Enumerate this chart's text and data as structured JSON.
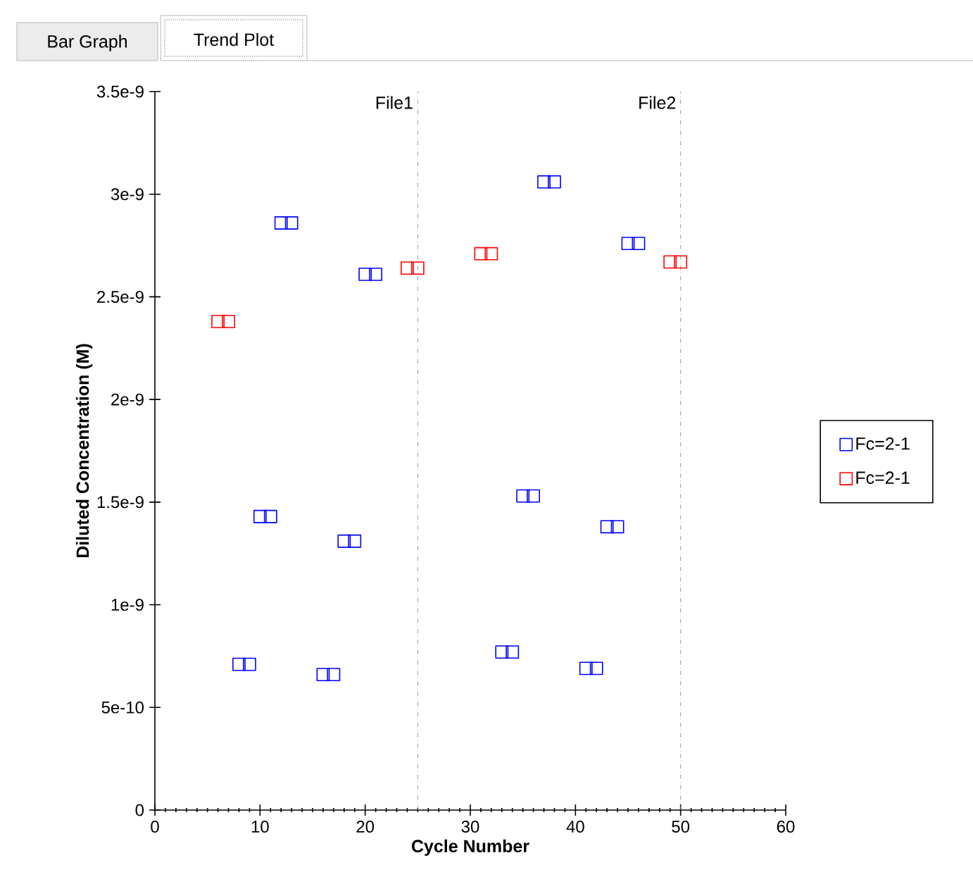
{
  "chart_data": {
    "type": "scatter",
    "xlabel": "Cycle Number",
    "ylabel": "Diluted Concentration (M)",
    "xlim": [
      0,
      60
    ],
    "xticks": [
      0,
      10,
      20,
      30,
      40,
      50,
      60
    ],
    "ylim": [
      0,
      3.5e-09
    ],
    "yticks": [
      0,
      {
        "value": 5e-10,
        "label": "5e-10"
      },
      {
        "value": 1e-09,
        "label": "1e-9"
      },
      {
        "value": 1.5e-09,
        "label": "1.5e-9"
      },
      {
        "value": 2e-09,
        "label": "2e-9"
      },
      {
        "value": 2.5e-09,
        "label": "2.5e-9"
      },
      {
        "value": 3e-09,
        "label": "3e-9"
      },
      {
        "value": 3.5e-09,
        "label": "3.5e-9"
      }
    ],
    "series": [
      {
        "name": "Fc=2-1",
        "color": "#0000ff",
        "x": [
          8,
          9,
          10,
          11,
          12,
          13,
          16,
          17,
          18,
          19,
          20,
          21,
          33,
          34,
          35,
          36,
          37,
          38,
          41,
          42,
          43,
          44,
          45,
          46
        ],
        "values": [
          7.1e-10,
          7.1e-10,
          1.43e-09,
          1.43e-09,
          2.86e-09,
          2.86e-09,
          6.6e-10,
          6.6e-10,
          1.31e-09,
          1.31e-09,
          2.61e-09,
          2.61e-09,
          7.7e-10,
          7.7e-10,
          1.53e-09,
          1.53e-09,
          3.06e-09,
          3.06e-09,
          6.9e-10,
          6.9e-10,
          1.38e-09,
          1.38e-09,
          2.76e-09,
          2.76e-09
        ]
      },
      {
        "name": "Fc=2-1",
        "color": "#ff0000",
        "x": [
          6,
          7,
          24,
          25,
          31,
          32,
          49,
          50
        ],
        "values": [
          2.38e-09,
          2.38e-09,
          2.64e-09,
          2.64e-09,
          2.71e-09,
          2.71e-09,
          2.67e-09,
          2.67e-09
        ]
      }
    ],
    "marker": "square",
    "grid": false,
    "legend": "right",
    "ref_lines": [
      {
        "axis": "x",
        "value": 25,
        "label": "File1",
        "color": "#808080",
        "line_style": "dashdot"
      },
      {
        "axis": "x",
        "value": 50,
        "label": "File2",
        "color": "#808080",
        "line_style": "dashdot"
      }
    ],
    "annotations": [
      "Bar Graph",
      "Trend Plot"
    ]
  }
}
